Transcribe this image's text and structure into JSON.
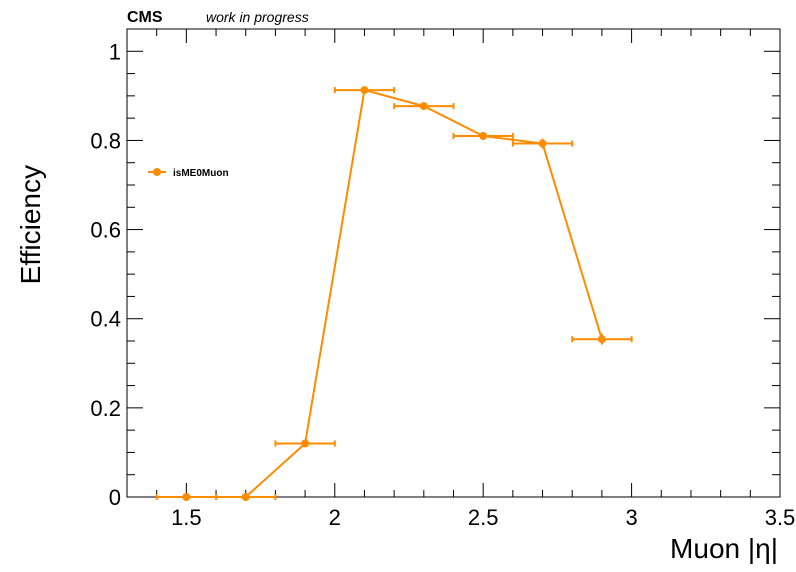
{
  "header": {
    "experiment": "CMS",
    "status": "work in progress"
  },
  "colors": {
    "series": "#ff8c00",
    "axis": "#000000",
    "background": "#ffffff"
  },
  "chart_data": {
    "type": "scatter",
    "title": "",
    "xlabel": "Muon |η|",
    "ylabel": "Efficiency",
    "xlim": [
      1.3,
      3.5
    ],
    "ylim": [
      0,
      1.05
    ],
    "grid": false,
    "legend_position": "left",
    "x_ticks": [
      1.5,
      2,
      2.5,
      3,
      3.5
    ],
    "x_tick_labels": [
      "1.5",
      "2",
      "2.5",
      "3",
      "3.5"
    ],
    "y_ticks": [
      0,
      0.2,
      0.4,
      0.6,
      0.8,
      1
    ],
    "y_tick_labels": [
      "0",
      "0.2",
      "0.4",
      "0.6",
      "0.8",
      "1"
    ],
    "series": [
      {
        "name": "isME0Muon",
        "color": "#ff8c00",
        "connected": true,
        "points": [
          {
            "x": 1.5,
            "xerr": 0.1,
            "y": 0.0,
            "yerr": 0.0
          },
          {
            "x": 1.7,
            "xerr": 0.1,
            "y": 0.0,
            "yerr": 0.0
          },
          {
            "x": 1.9,
            "xerr": 0.1,
            "y": 0.12,
            "yerr": 0.005
          },
          {
            "x": 2.1,
            "xerr": 0.1,
            "y": 0.913,
            "yerr": 0.005
          },
          {
            "x": 2.3,
            "xerr": 0.1,
            "y": 0.877,
            "yerr": 0.007
          },
          {
            "x": 2.5,
            "xerr": 0.1,
            "y": 0.81,
            "yerr": 0.009
          },
          {
            "x": 2.7,
            "xerr": 0.1,
            "y": 0.793,
            "yerr": 0.011
          },
          {
            "x": 2.9,
            "xerr": 0.1,
            "y": 0.354,
            "yerr": 0.012
          }
        ]
      }
    ]
  }
}
